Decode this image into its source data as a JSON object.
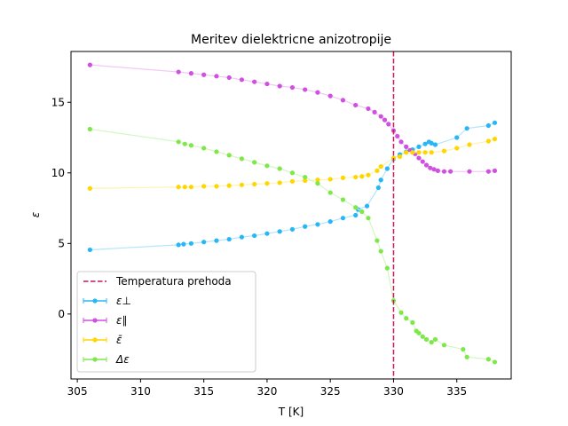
{
  "chart_data": {
    "type": "line",
    "title": "Meritev dielektricne anizotropije",
    "xlabel": "T [K]",
    "ylabel": "ε",
    "xlim": [
      304.5,
      339.3
    ],
    "ylim": [
      -4.6,
      18.6
    ],
    "xticks": [
      305,
      310,
      315,
      320,
      325,
      330,
      335
    ],
    "yticks": [
      0,
      5,
      10,
      15
    ],
    "grid": false,
    "legend_position": "lower-left",
    "vline": {
      "x": 330,
      "color": "#c2185b",
      "label": "Temperatura prehoda"
    },
    "series": [
      {
        "name": "ε⊥",
        "color": "#29b6f6",
        "line_color": "#b3e5fc",
        "points": [
          [
            306,
            4.55
          ],
          [
            313,
            4.9
          ],
          [
            313.4,
            4.95
          ],
          [
            314,
            5.0
          ],
          [
            315,
            5.1
          ],
          [
            316,
            5.2
          ],
          [
            317,
            5.3
          ],
          [
            318,
            5.45
          ],
          [
            319,
            5.55
          ],
          [
            320,
            5.7
          ],
          [
            321,
            5.85
          ],
          [
            322,
            6.0
          ],
          [
            323,
            6.2
          ],
          [
            324,
            6.35
          ],
          [
            325,
            6.55
          ],
          [
            326,
            6.8
          ],
          [
            327,
            7.0
          ],
          [
            327.2,
            7.4
          ],
          [
            327.9,
            7.65
          ],
          [
            328.8,
            8.95
          ],
          [
            329,
            9.5
          ],
          [
            329.5,
            10.3
          ],
          [
            330,
            11.0
          ],
          [
            330.5,
            11.3
          ],
          [
            331,
            11.5
          ],
          [
            331.5,
            11.65
          ],
          [
            332,
            11.85
          ],
          [
            332.5,
            12.05
          ],
          [
            332.8,
            12.2
          ],
          [
            333,
            12.1
          ],
          [
            333.3,
            12.0
          ],
          [
            335,
            12.5
          ],
          [
            335.8,
            13.15
          ],
          [
            337.5,
            13.35
          ],
          [
            338,
            13.55
          ]
        ]
      },
      {
        "name": "ε∥",
        "color": "#d050e0",
        "line_color": "#f3c6f7",
        "points": [
          [
            306,
            17.65
          ],
          [
            313,
            17.15
          ],
          [
            314,
            17.05
          ],
          [
            315,
            16.95
          ],
          [
            316,
            16.85
          ],
          [
            317,
            16.75
          ],
          [
            318,
            16.6
          ],
          [
            319,
            16.45
          ],
          [
            320,
            16.3
          ],
          [
            321,
            16.15
          ],
          [
            322,
            16.05
          ],
          [
            323,
            15.9
          ],
          [
            324,
            15.7
          ],
          [
            325,
            15.45
          ],
          [
            326,
            15.15
          ],
          [
            327,
            14.8
          ],
          [
            328,
            14.55
          ],
          [
            328.5,
            14.3
          ],
          [
            329,
            14.0
          ],
          [
            329.3,
            13.75
          ],
          [
            329.6,
            13.45
          ],
          [
            330,
            13.0
          ],
          [
            330.3,
            12.6
          ],
          [
            330.6,
            12.2
          ],
          [
            331,
            11.85
          ],
          [
            331.3,
            11.6
          ],
          [
            331.7,
            11.35
          ],
          [
            332,
            11.05
          ],
          [
            332.3,
            10.8
          ],
          [
            332.6,
            10.55
          ],
          [
            332.9,
            10.35
          ],
          [
            333.2,
            10.25
          ],
          [
            333.5,
            10.15
          ],
          [
            334,
            10.1
          ],
          [
            334.5,
            10.1
          ],
          [
            336,
            10.1
          ],
          [
            337.5,
            10.1
          ],
          [
            338,
            10.15
          ]
        ]
      },
      {
        "name": "ε̄",
        "color": "#ffd600",
        "line_color": "#fff3b0",
        "points": [
          [
            306,
            8.9
          ],
          [
            313,
            9.0
          ],
          [
            313.5,
            9.0
          ],
          [
            314,
            9.0
          ],
          [
            315,
            9.05
          ],
          [
            316,
            9.05
          ],
          [
            317,
            9.1
          ],
          [
            318,
            9.15
          ],
          [
            319,
            9.2
          ],
          [
            320,
            9.25
          ],
          [
            321,
            9.3
          ],
          [
            322,
            9.4
          ],
          [
            323,
            9.45
          ],
          [
            324,
            9.5
          ],
          [
            325,
            9.55
          ],
          [
            326,
            9.65
          ],
          [
            327,
            9.7
          ],
          [
            327.5,
            9.75
          ],
          [
            328,
            9.85
          ],
          [
            328.7,
            10.15
          ],
          [
            329,
            10.45
          ],
          [
            330,
            11.05
          ],
          [
            330.5,
            11.15
          ],
          [
            331,
            11.45
          ],
          [
            331.5,
            11.45
          ],
          [
            332,
            11.45
          ],
          [
            332.5,
            11.45
          ],
          [
            333,
            11.45
          ],
          [
            334,
            11.55
          ],
          [
            335,
            11.75
          ],
          [
            336,
            12.0
          ],
          [
            337.5,
            12.25
          ],
          [
            338,
            12.4
          ]
        ]
      },
      {
        "name": "Δε",
        "color": "#7ee84a",
        "line_color": "#d4f7c2",
        "points": [
          [
            306,
            13.1
          ],
          [
            313,
            12.2
          ],
          [
            313.5,
            12.05
          ],
          [
            314,
            11.95
          ],
          [
            315,
            11.75
          ],
          [
            316,
            11.5
          ],
          [
            317,
            11.25
          ],
          [
            318,
            11.0
          ],
          [
            319,
            10.75
          ],
          [
            320,
            10.5
          ],
          [
            321,
            10.3
          ],
          [
            322,
            10.0
          ],
          [
            323,
            9.7
          ],
          [
            324,
            9.25
          ],
          [
            325,
            8.6
          ],
          [
            326,
            8.1
          ],
          [
            327,
            7.55
          ],
          [
            327.5,
            7.25
          ],
          [
            328,
            6.8
          ],
          [
            328.7,
            5.2
          ],
          [
            329,
            4.45
          ],
          [
            329.5,
            3.25
          ],
          [
            330,
            0.95
          ],
          [
            330.6,
            0.1
          ],
          [
            331,
            -0.3
          ],
          [
            331.5,
            -0.6
          ],
          [
            331.8,
            -1.2
          ],
          [
            332,
            -1.35
          ],
          [
            332.3,
            -1.6
          ],
          [
            332.6,
            -1.8
          ],
          [
            333,
            -2.0
          ],
          [
            333.3,
            -1.8
          ],
          [
            334,
            -2.2
          ],
          [
            335.5,
            -2.5
          ],
          [
            335.8,
            -3.05
          ],
          [
            337.5,
            -3.2
          ],
          [
            338,
            -3.4
          ]
        ]
      }
    ]
  }
}
